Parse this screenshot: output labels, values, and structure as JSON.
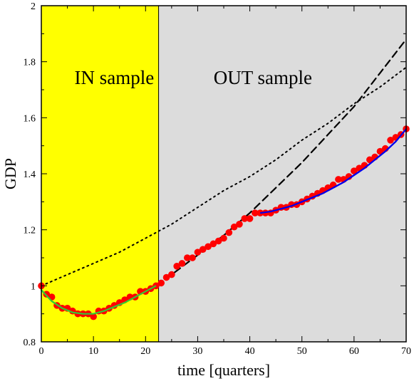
{
  "chart_data": {
    "type": "scatter",
    "xlabel": "time [quarters]",
    "ylabel": "GDP",
    "xlim": [
      0,
      70
    ],
    "ylim": [
      0.8,
      2.0
    ],
    "x_ticks": [
      0,
      10,
      20,
      30,
      40,
      50,
      60,
      70
    ],
    "y_ticks": [
      0.8,
      1,
      1.2,
      1.4,
      1.6,
      1.8,
      2
    ],
    "y_tick_labels": [
      "0.8",
      "1",
      "1.2",
      "1.4",
      "1.6",
      "1.8",
      "2"
    ],
    "grid": false,
    "regions": [
      {
        "label": "IN sample",
        "x_range": [
          0,
          22.5
        ],
        "color": "#ffff00"
      },
      {
        "label": "OUT sample",
        "x_range": [
          22.5,
          70
        ],
        "color": "#dcdcdc"
      }
    ],
    "series": [
      {
        "style": "points",
        "color": "#ff0000",
        "x": [
          0,
          1,
          2,
          3,
          4,
          5,
          6,
          7,
          8,
          9,
          10,
          11,
          12,
          13,
          14,
          15,
          16,
          17,
          18,
          19,
          20,
          21,
          22,
          23,
          24,
          25,
          26,
          27,
          28,
          29,
          30,
          31,
          32,
          33,
          34,
          35,
          36,
          37,
          38,
          39,
          40,
          41,
          42,
          43,
          44,
          45,
          46,
          47,
          48,
          49,
          50,
          51,
          52,
          53,
          54,
          55,
          56,
          57,
          58,
          59,
          60,
          61,
          62,
          63,
          64,
          65,
          66,
          67,
          68,
          69,
          70
        ],
        "y": [
          1.0,
          0.97,
          0.96,
          0.93,
          0.92,
          0.92,
          0.91,
          0.9,
          0.9,
          0.9,
          0.89,
          0.91,
          0.91,
          0.92,
          0.93,
          0.94,
          0.95,
          0.96,
          0.96,
          0.98,
          0.98,
          0.99,
          1.0,
          1.01,
          1.03,
          1.04,
          1.07,
          1.08,
          1.1,
          1.1,
          1.12,
          1.13,
          1.14,
          1.15,
          1.16,
          1.17,
          1.19,
          1.21,
          1.22,
          1.24,
          1.24,
          1.26,
          1.26,
          1.26,
          1.26,
          1.27,
          1.28,
          1.28,
          1.29,
          1.29,
          1.3,
          1.31,
          1.32,
          1.33,
          1.34,
          1.35,
          1.36,
          1.38,
          1.38,
          1.39,
          1.41,
          1.42,
          1.43,
          1.45,
          1.46,
          1.48,
          1.49,
          1.52,
          1.53,
          1.54,
          1.56
        ]
      },
      {
        "style": "solid-line",
        "color": "#33cc33",
        "x": [
          0,
          2,
          4,
          6,
          8,
          10,
          12,
          14,
          16,
          18,
          20,
          22
        ],
        "y": [
          0.985,
          0.945,
          0.92,
          0.905,
          0.9,
          0.9,
          0.91,
          0.925,
          0.94,
          0.96,
          0.98,
          1.0
        ]
      },
      {
        "style": "solid-line",
        "color": "#0000ee",
        "x": [
          42,
          44,
          46,
          48,
          50,
          52,
          54,
          56,
          58,
          60,
          62,
          64,
          66,
          68,
          70
        ],
        "y": [
          1.26,
          1.265,
          1.275,
          1.285,
          1.3,
          1.315,
          1.33,
          1.35,
          1.37,
          1.395,
          1.42,
          1.45,
          1.48,
          1.515,
          1.56
        ]
      },
      {
        "style": "dashed-line",
        "color": "#000000",
        "x": [
          22,
          25,
          30,
          35,
          40,
          45,
          50,
          55,
          60,
          65,
          70
        ],
        "y": [
          1.0,
          1.04,
          1.11,
          1.18,
          1.26,
          1.35,
          1.44,
          1.54,
          1.64,
          1.76,
          1.88
        ]
      },
      {
        "style": "dotted-line",
        "color": "#000000",
        "x": [
          0,
          5,
          10,
          15,
          20,
          25,
          30,
          35,
          40,
          45,
          50,
          55,
          60,
          65,
          70
        ],
        "y": [
          1.0,
          1.04,
          1.08,
          1.12,
          1.17,
          1.22,
          1.28,
          1.34,
          1.39,
          1.45,
          1.52,
          1.58,
          1.65,
          1.71,
          1.78
        ]
      }
    ]
  }
}
